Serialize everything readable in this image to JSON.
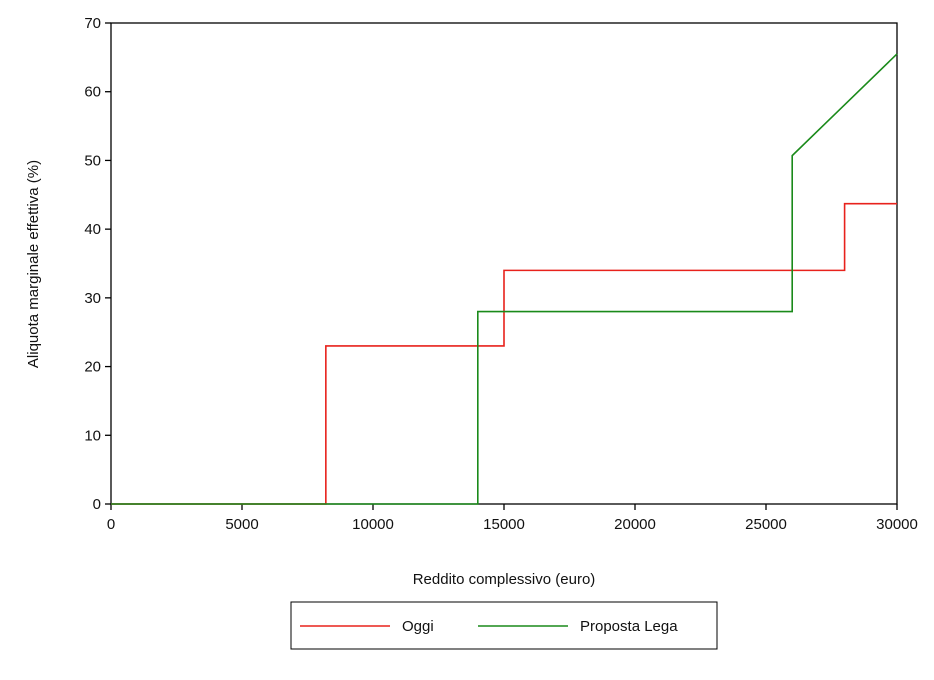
{
  "chart_data": {
    "type": "line",
    "x_label": "Reddito complessivo (euro)",
    "y_label": "Aliquota marginale effettiva (%)",
    "x": [
      0,
      8200,
      8200,
      14000,
      14000,
      15000,
      15000,
      26000,
      26000,
      28000,
      28000,
      30000
    ],
    "series": [
      {
        "name": "Oggi",
        "color": "#e8221c",
        "values": [
          0,
          0,
          23,
          23,
          23,
          23,
          34,
          34,
          34,
          34,
          43.7,
          43.7
        ]
      },
      {
        "name": "Proposta Lega",
        "color": "#1a8a1a",
        "values": [
          0,
          0,
          0,
          0,
          28,
          28,
          28,
          28,
          50.7,
          58.1,
          58.1,
          65.5
        ]
      }
    ],
    "xlim": [
      0,
      30000
    ],
    "xticks": [
      0,
      5000,
      10000,
      15000,
      20000,
      25000,
      30000
    ],
    "ylim": [
      0,
      70
    ],
    "yticks": [
      0,
      10,
      20,
      30,
      40,
      50,
      60,
      70
    ],
    "legend": "bottom"
  }
}
